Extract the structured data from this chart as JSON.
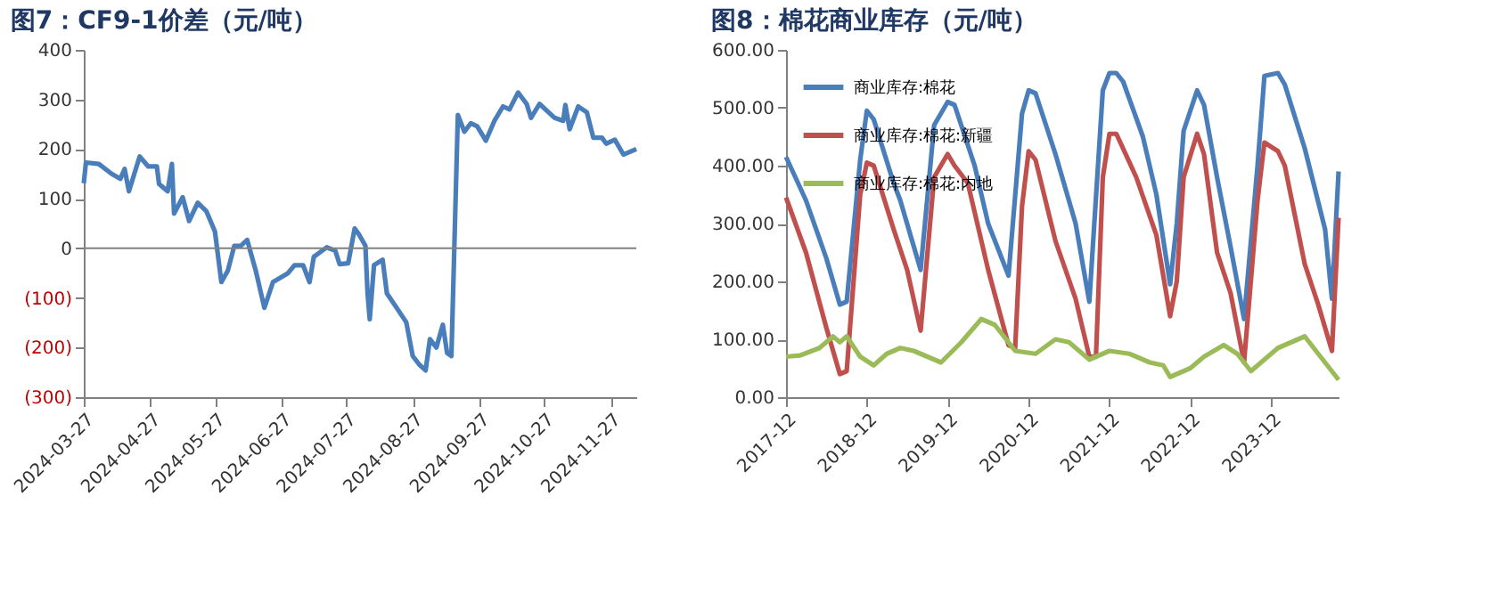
{
  "chart_data": [
    {
      "type": "line",
      "title": "图7：CF9-1价差（元/吨）",
      "x": [
        "2024-03-27",
        "2024-03-28",
        "2024-04-03",
        "2024-04-09",
        "2024-04-13",
        "2024-04-15",
        "2024-04-17",
        "2024-04-22",
        "2024-04-26",
        "2024-04-30",
        "2024-05-01",
        "2024-05-05",
        "2024-05-07",
        "2024-05-08",
        "2024-05-12",
        "2024-05-15",
        "2024-05-19",
        "2024-05-23",
        "2024-05-27",
        "2024-05-30",
        "2024-06-02",
        "2024-06-05",
        "2024-06-08",
        "2024-06-11",
        "2024-06-15",
        "2024-06-19",
        "2024-06-23",
        "2024-06-30",
        "2024-07-03",
        "2024-07-07",
        "2024-07-10",
        "2024-07-12",
        "2024-07-18",
        "2024-07-22",
        "2024-07-24",
        "2024-07-28",
        "2024-07-31",
        "2024-08-02",
        "2024-08-05",
        "2024-08-06",
        "2024-08-07",
        "2024-08-09",
        "2024-08-13",
        "2024-08-15",
        "2024-08-20",
        "2024-08-24",
        "2024-08-27",
        "2024-08-30",
        "2024-09-02",
        "2024-09-04",
        "2024-09-07",
        "2024-09-10",
        "2024-09-12",
        "2024-09-14",
        "2024-09-17",
        "2024-09-20",
        "2024-09-23",
        "2024-09-26",
        "2024-09-30",
        "2024-10-04",
        "2024-10-08",
        "2024-10-11",
        "2024-10-15",
        "2024-10-19",
        "2024-10-21",
        "2024-10-25",
        "2024-11-01",
        "2024-11-05",
        "2024-11-06",
        "2024-11-08",
        "2024-11-12",
        "2024-11-16",
        "2024-11-19",
        "2024-11-23",
        "2024-11-25",
        "2024-11-29",
        "2024-12-03",
        "2024-12-09"
      ],
      "series": [
        {
          "color": "#4a7ebb",
          "values": [
            131,
            173,
            170,
            150,
            140,
            160,
            115,
            185,
            165,
            165,
            130,
            115,
            170,
            70,
            103,
            55,
            92,
            75,
            34,
            -68,
            -45,
            5,
            5,
            17,
            -45,
            -120,
            -68,
            -50,
            -34,
            -34,
            -68,
            -17,
            2,
            -5,
            -32,
            -30,
            40,
            28,
            5,
            -91,
            -143,
            -34,
            -23,
            -91,
            -123,
            -149,
            -217,
            -234,
            -246,
            -183,
            -200,
            -154,
            -211,
            -217,
            269,
            235,
            252,
            246,
            217,
            257,
            286,
            280,
            314,
            291,
            263,
            291,
            263,
            257,
            289,
            240,
            286,
            274,
            223,
            223,
            211,
            219,
            189,
            200
          ]
        }
      ],
      "xlim": [
        "2024-03-27",
        "2024-12-09"
      ],
      "xticks": [
        "2024-03-27",
        "2024-04-27",
        "2024-05-27",
        "2024-06-27",
        "2024-07-27",
        "2024-08-27",
        "2024-09-27",
        "2024-10-27",
        "2024-11-27"
      ],
      "ylim": [
        -300,
        400
      ],
      "yticks": [
        400,
        300,
        200,
        100,
        0,
        {
          "value": -100,
          "label": "(100)"
        },
        {
          "value": -200,
          "label": "(200)"
        },
        {
          "value": -300,
          "label": "(300)"
        }
      ],
      "ref_lines": [
        {
          "axis": "y",
          "value": 0,
          "label": null,
          "color": "#808080"
        }
      ],
      "grid": false,
      "legend": false,
      "marker": "none",
      "line_style": "solid"
    },
    {
      "type": "line",
      "title": "图8：棉花商业库存（元/吨）",
      "series": [
        {
          "name": "商业库存:棉花",
          "color": "#4a7ebb",
          "x": [
            "2017-12",
            "2018-03",
            "2018-06",
            "2018-08",
            "2018-09",
            "2018-11",
            "2018-12",
            "2019-01",
            "2019-04",
            "2019-05",
            "2019-08",
            "2019-10",
            "2019-12",
            "2020-01",
            "2020-04",
            "2020-06",
            "2020-09",
            "2020-11",
            "2020-12",
            "2021-01",
            "2021-04",
            "2021-07",
            "2021-09",
            "2021-11",
            "2021-12",
            "2022-01",
            "2022-02",
            "2022-05",
            "2022-07",
            "2022-09",
            "2022-10",
            "2022-11",
            "2023-01",
            "2023-02",
            "2023-04",
            "2023-06",
            "2023-08",
            "2023-10",
            "2023-11",
            "2024-01",
            "2024-02",
            "2024-05",
            "2024-08",
            "2024-09",
            "2024-10"
          ],
          "values": [
            415,
            340,
            240,
            160,
            165,
            410,
            495,
            480,
            370,
            340,
            220,
            470,
            510,
            505,
            400,
            300,
            210,
            490,
            530,
            525,
            420,
            300,
            165,
            530,
            560,
            560,
            545,
            450,
            350,
            195,
            300,
            460,
            530,
            505,
            380,
            260,
            135,
            400,
            555,
            560,
            540,
            430,
            290,
            170,
            390
          ]
        },
        {
          "name": "商业库存:棉花:新疆",
          "color": "#c0504d",
          "x": [
            "2017-12",
            "2018-03",
            "2018-06",
            "2018-08",
            "2018-09",
            "2018-11",
            "2018-12",
            "2019-01",
            "2019-04",
            "2019-06",
            "2019-08",
            "2019-10",
            "2019-12",
            "2020-01",
            "2020-03",
            "2020-06",
            "2020-09",
            "2020-10",
            "2020-11",
            "2020-12",
            "2021-01",
            "2021-04",
            "2021-07",
            "2021-09",
            "2021-10",
            "2021-11",
            "2021-12",
            "2022-01",
            "2022-04",
            "2022-07",
            "2022-09",
            "2022-10",
            "2022-11",
            "2023-01",
            "2023-02",
            "2023-04",
            "2023-06",
            "2023-08",
            "2023-10",
            "2023-11",
            "2024-01",
            "2024-02",
            "2024-05",
            "2024-07",
            "2024-09",
            "2024-10"
          ],
          "values": [
            345,
            250,
            120,
            40,
            45,
            350,
            405,
            400,
            290,
            220,
            115,
            380,
            420,
            400,
            370,
            220,
            90,
            85,
            330,
            425,
            410,
            270,
            170,
            70,
            70,
            380,
            455,
            455,
            380,
            280,
            140,
            200,
            380,
            455,
            420,
            250,
            180,
            60,
            340,
            440,
            425,
            400,
            230,
            160,
            80,
            310
          ]
        },
        {
          "name": "商业库存:棉花:内地",
          "color": "#9bbb59",
          "x": [
            "2017-12",
            "2018-02",
            "2018-05",
            "2018-07",
            "2018-08",
            "2018-09",
            "2018-11",
            "2019-01",
            "2019-03",
            "2019-05",
            "2019-07",
            "2019-11",
            "2020-02",
            "2020-05",
            "2020-07",
            "2020-10",
            "2021-01",
            "2021-04",
            "2021-06",
            "2021-09",
            "2021-12",
            "2022-03",
            "2022-06",
            "2022-08",
            "2022-09",
            "2022-12",
            "2023-02",
            "2023-05",
            "2023-07",
            "2023-09",
            "2024-01",
            "2024-05",
            "2024-07",
            "2024-10"
          ],
          "values": [
            70,
            72,
            85,
            105,
            95,
            105,
            70,
            55,
            75,
            85,
            80,
            60,
            95,
            135,
            125,
            80,
            75,
            100,
            95,
            65,
            80,
            75,
            60,
            55,
            35,
            50,
            70,
            90,
            75,
            45,
            85,
            105,
            75,
            30
          ]
        }
      ],
      "xlim": [
        "2017-12",
        "2024-10"
      ],
      "xticks": [
        "2017-12",
        "2018-12",
        "2019-12",
        "2020-12",
        "2021-12",
        "2022-12",
        "2023-12"
      ],
      "ylim": [
        0,
        600
      ],
      "yticks": [
        {
          "value": 0,
          "label": "0.00"
        },
        {
          "value": 100,
          "label": "100.00"
        },
        {
          "value": 200,
          "label": "200.00"
        },
        {
          "value": 300,
          "label": "300.00"
        },
        {
          "value": 400,
          "label": "400.00"
        },
        {
          "value": 500,
          "label": "500.00"
        },
        {
          "value": 600,
          "label": "600.00"
        }
      ],
      "grid": false,
      "legend": "top left",
      "marker": "none",
      "line_style": "solid"
    }
  ]
}
